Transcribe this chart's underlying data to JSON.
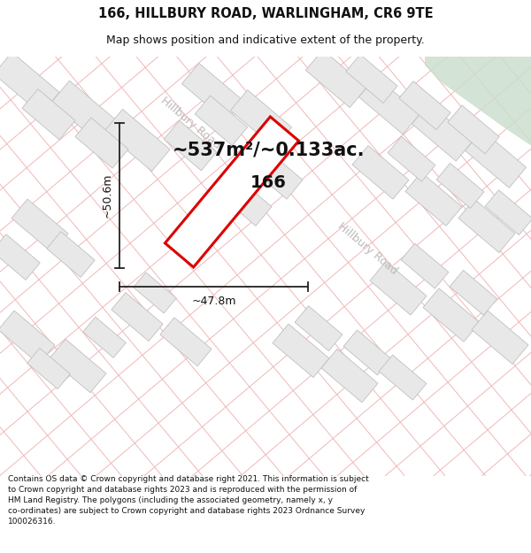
{
  "title_line1": "166, HILLBURY ROAD, WARLINGHAM, CR6 9TE",
  "title_line2": "Map shows position and indicative extent of the property.",
  "area_text": "~537m²/~0.133ac.",
  "label_166": "166",
  "dim_height": "~50.6m",
  "dim_width": "~47.8m",
  "road_label_top": "Hillbury Road",
  "road_label_bottom": "Hillbury Road",
  "footer_text": "Contains OS data © Crown copyright and database right 2021. This information is subject\nto Crown copyright and database rights 2023 and is reproduced with the permission of\nHM Land Registry. The polygons (including the associated geometry, namely x, y\nco-ordinates) are subject to Crown copyright and database rights 2023 Ordnance Survey\n100026316.",
  "bg_color": "#ffffff",
  "map_bg": "#fafafa",
  "grid_color": "#f0b8b8",
  "building_fc": "#e8e8e8",
  "building_ec": "#c0c0c0",
  "green_color": "#ccdece",
  "property_color": "#dd0000",
  "dim_color": "#222222",
  "road_color": "#bbbbbb",
  "title_fontsize": 10.5,
  "subtitle_fontsize": 9,
  "area_fontsize": 15,
  "label_fontsize": 14,
  "dim_fontsize": 9,
  "road_fontsize": 9,
  "footer_fontsize": 6.5
}
